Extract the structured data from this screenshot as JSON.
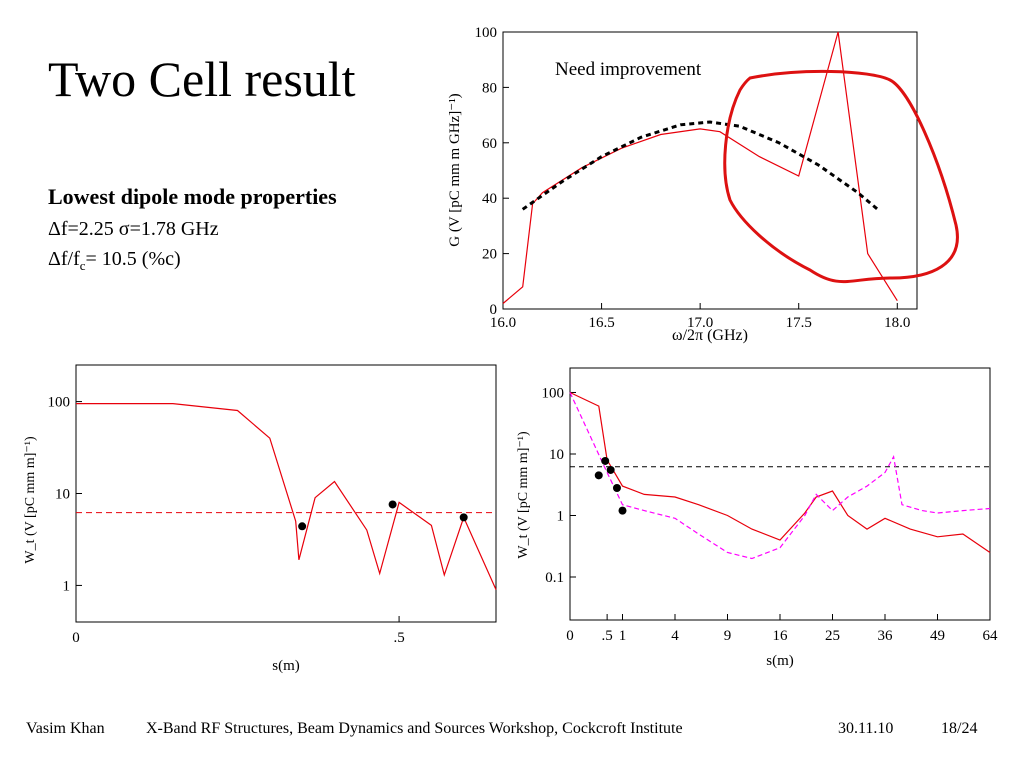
{
  "slide": {
    "title": "Two Cell result",
    "subtitle": "Lowest dipole mode properties",
    "prop1": "Δf=2.25 σ=1.78 GHz",
    "prop2_main": "Δf/f",
    "prop2_sub": "c",
    "prop2_rest": "= 10.5 (%c)"
  },
  "footer": {
    "author": "Vasim Khan",
    "event": "X-Band RF Structures, Beam Dynamics and Sources Workshop, Cockcroft Institute",
    "date": "30.11.10",
    "page": "18/24"
  },
  "colors": {
    "accent_red": "#e8000b",
    "magenta": "#ff00ff",
    "fit": "#000000",
    "annotation": "#dd1111"
  },
  "chart_data": [
    {
      "type": "line",
      "xlabel": "ω/2π (GHz)",
      "ylabel": "G (V [pC mm m GHz]⁻¹)",
      "xlim": [
        16.0,
        18.1
      ],
      "ylim": [
        0,
        100
      ],
      "xticks": [
        "16.0",
        "16.5",
        "17.0",
        "17.5",
        "18.0"
      ],
      "yticks": [
        "0",
        "20",
        "40",
        "60",
        "80",
        "100"
      ],
      "annotation": "Need improvement",
      "series": [
        {
          "style": "solid-red",
          "x": [
            16.0,
            16.1,
            16.15,
            16.2,
            16.4,
            16.6,
            16.8,
            17.0,
            17.1,
            17.3,
            17.5,
            17.7,
            17.85,
            18.0
          ],
          "y": [
            2,
            8,
            38,
            42,
            51,
            58,
            63,
            65,
            64,
            55,
            48,
            100,
            20,
            3
          ]
        },
        {
          "style": "dashed-black",
          "x": [
            16.1,
            16.3,
            16.5,
            16.7,
            16.9,
            17.05,
            17.2,
            17.4,
            17.6,
            17.8,
            17.9
          ],
          "y": [
            36,
            46,
            55,
            62,
            66.5,
            67.5,
            66,
            60,
            52,
            42,
            36
          ]
        }
      ]
    },
    {
      "type": "line",
      "xlabel": "s(m)",
      "ylabel": "W_t (V [pC mm m]⁻¹)",
      "yscale": "log",
      "xlim": [
        0,
        0.65
      ],
      "ylim": [
        0.4,
        250
      ],
      "xticks": [
        "0",
        ".5"
      ],
      "yticks": [
        "1",
        "10",
        "100"
      ],
      "threshold": 6.2,
      "series": [
        {
          "style": "solid-red",
          "x": [
            0,
            0.15,
            0.25,
            0.3,
            0.34,
            0.345,
            0.37,
            0.4,
            0.45,
            0.47,
            0.5,
            0.55,
            0.57,
            0.6,
            0.65
          ],
          "y": [
            95,
            95,
            80,
            40,
            5,
            1.9,
            9,
            13.5,
            4,
            1.35,
            8,
            4.5,
            1.3,
            5.5,
            0.9
          ]
        },
        {
          "style": "points",
          "x": [
            0.35,
            0.49,
            0.6
          ],
          "y": [
            4.4,
            7.6,
            5.5
          ]
        }
      ]
    },
    {
      "type": "line",
      "xlabel": "s(m)",
      "ylabel": "W_t (V [pC mm m]⁻¹)",
      "yscale": "log",
      "xscale": "sqrt",
      "xlim": [
        0,
        64
      ],
      "ylim": [
        0.02,
        250
      ],
      "xticks": [
        "0",
        ".5",
        "1",
        "4",
        "9",
        "16",
        "25",
        "36",
        "49",
        "64"
      ],
      "yticks": [
        "0.1",
        "1",
        "10",
        "100"
      ],
      "threshold": 6.2,
      "series": [
        {
          "style": "solid-red",
          "x": [
            0,
            0.3,
            0.5,
            1,
            2,
            4,
            6,
            9,
            12,
            16,
            20,
            22,
            25,
            28,
            32,
            36,
            42,
            49,
            56,
            64
          ],
          "y": [
            100,
            60,
            8,
            3,
            2.2,
            2,
            1.5,
            1,
            0.6,
            0.4,
            1.1,
            2,
            2.5,
            1,
            0.6,
            0.9,
            0.6,
            0.45,
            0.5,
            0.25
          ]
        },
        {
          "style": "dashed-magenta",
          "x": [
            0,
            0.5,
            1,
            2,
            4,
            6,
            9,
            12,
            16,
            20,
            22,
            25,
            28,
            32,
            36,
            38,
            40,
            45,
            49,
            56,
            64
          ],
          "y": [
            100,
            5,
            1.5,
            1.2,
            0.9,
            0.5,
            0.25,
            0.2,
            0.3,
            1,
            2.2,
            1.2,
            2,
            3,
            5,
            9,
            1.5,
            1.2,
            1.1,
            1.2,
            1.3
          ]
        },
        {
          "style": "points",
          "x": [
            0.3,
            0.45,
            0.6,
            0.8,
            1.0
          ],
          "y": [
            4.5,
            7.7,
            5.5,
            2.8,
            1.2
          ]
        }
      ]
    }
  ]
}
